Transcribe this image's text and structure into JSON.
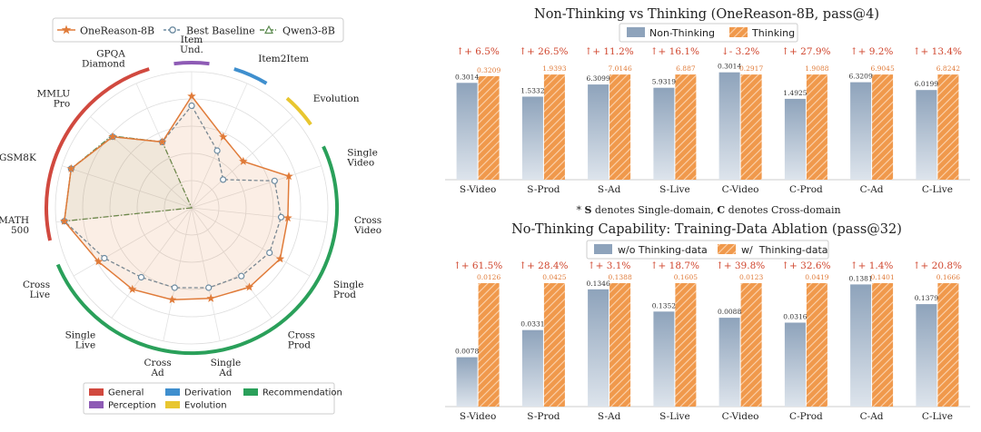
{
  "colors": {
    "onereason": "#e07b39",
    "baseline": "#6b8aa0",
    "qwen": "#5c8a4f",
    "general": "#d1493f",
    "perception": "#8e5bb5",
    "derivation": "#3f8fce",
    "evolution": "#e8c630",
    "recommendation": "#2aa05a",
    "bar_blue": "#8ea3bb",
    "bar_orange": "#f0994c",
    "gain_text": "#d0462e",
    "value_orange": "#e07b39"
  },
  "chart_data": [
    {
      "type": "radar",
      "legend": [
        "OneReason-8B",
        "Best Baseline",
        "Qwen3-8B"
      ],
      "axes": [
        {
          "label": [
            "Item",
            "Und."
          ],
          "group": "perception"
        },
        {
          "label": [
            "Item2Item"
          ],
          "group": "derivation"
        },
        {
          "label": [
            "Evolution"
          ],
          "group": "evolution"
        },
        {
          "label": [
            "Single",
            "Video"
          ],
          "group": "recommendation"
        },
        {
          "label": [
            "Cross",
            "Video"
          ],
          "group": "recommendation"
        },
        {
          "label": [
            "Single",
            "Prod"
          ],
          "group": "recommendation"
        },
        {
          "label": [
            "Cross",
            "Prod"
          ],
          "group": "recommendation"
        },
        {
          "label": [
            "Single",
            "Ad"
          ],
          "group": "recommendation"
        },
        {
          "label": [
            "Cross",
            "Ad"
          ],
          "group": "recommendation"
        },
        {
          "label": [
            "Single",
            "Live"
          ],
          "group": "recommendation"
        },
        {
          "label": [
            "Cross",
            "Live"
          ],
          "group": "recommendation"
        },
        {
          "label": [
            "MATH",
            "500"
          ],
          "group": "general"
        },
        {
          "label": [
            "GSM8K"
          ],
          "group": "general"
        },
        {
          "label": [
            "MMLU",
            "Pro"
          ],
          "group": "general"
        },
        {
          "label": [
            "GPQA",
            "Diamond"
          ],
          "group": "general"
        }
      ],
      "series": [
        {
          "name": "OneReason-8B",
          "values": [
            0.82,
            0.57,
            0.51,
            0.75,
            0.71,
            0.75,
            0.72,
            0.68,
            0.69,
            0.74,
            0.79,
            0.94,
            0.93,
            0.78,
            0.53
          ]
        },
        {
          "name": "Best Baseline",
          "values": [
            0.75,
            0.46,
            0.31,
            0.64,
            0.66,
            0.66,
            0.62,
            0.6,
            0.6,
            0.63,
            0.74,
            0.94,
            0.93,
            0.78,
            0.53
          ]
        },
        {
          "name": "Qwen3-8B",
          "values": [
            0,
            0,
            0,
            0,
            0,
            0,
            0,
            0,
            0,
            0,
            0,
            0.94,
            0.93,
            0.79,
            0.53
          ]
        }
      ],
      "groups_legend": [
        {
          "key": "general",
          "label": "General"
        },
        {
          "key": "derivation",
          "label": "Derivation"
        },
        {
          "key": "recommendation",
          "label": "Recommendation"
        },
        {
          "key": "perception",
          "label": "Perception"
        },
        {
          "key": "evolution",
          "label": "Evolution"
        }
      ]
    },
    {
      "type": "bar",
      "title": "Non-Thinking vs Thinking (OneReason-8B, pass@4)",
      "categories": [
        "S-Video",
        "S-Prod",
        "S-Ad",
        "S-Live",
        "C-Video",
        "C-Prod",
        "C-Ad",
        "C-Live"
      ],
      "series": [
        {
          "name": "Non-Thinking",
          "values": [
            0.3014,
            1.5332,
            6.3099,
            5.9319,
            0.3014,
            1.4925,
            6.3209,
            6.0199
          ],
          "labels": [
            "0.3014",
            "1.5332",
            "6.3099",
            "5.9319",
            "0.3014",
            "1.4925",
            "6.3209",
            "6.0199"
          ],
          "relative": [
            0.875,
            0.75,
            0.86,
            0.83,
            0.97,
            0.73,
            0.88,
            0.81
          ]
        },
        {
          "name": "Thinking",
          "values": [
            0.3209,
            1.9393,
            7.0146,
            6.887,
            0.2917,
            1.9088,
            6.9045,
            6.8242
          ],
          "labels": [
            "0.3209",
            "1.9393",
            "7.0146",
            "6.887",
            "0.2917",
            "1.9088",
            "6.9045",
            "6.8242"
          ],
          "relative": [
            0.935,
            0.95,
            0.95,
            0.95,
            0.95,
            0.95,
            0.95,
            0.95
          ]
        }
      ],
      "gains": [
        "↑+ 6.5%",
        "↑+ 26.5%",
        "↑+ 11.2%",
        "↑+ 16.1%",
        "↓- 3.2%",
        "↑+ 27.9%",
        "↑+ 9.2%",
        "↑+ 13.4%"
      ],
      "legend_placement": "top-center"
    },
    {
      "type": "bar",
      "title": "No-Thinking Capability: Training-Data Ablation (pass@32)",
      "categories": [
        "S-Video",
        "S-Prod",
        "S-Ad",
        "S-Live",
        "C-Video",
        "C-Prod",
        "C-Ad",
        "C-Live"
      ],
      "series": [
        {
          "name": "w/o Thinking-data",
          "values": [
            0.0078,
            0.0331,
            0.1346,
            0.1352,
            0.0088,
            0.0316,
            0.1381,
            0.1379
          ],
          "labels": [
            "0.0078",
            "0.0331",
            "0.1346",
            "0.1352",
            "0.0088",
            "0.0316",
            "0.1381",
            "0.1379"
          ],
          "relative": [
            0.4,
            0.62,
            0.95,
            0.77,
            0.72,
            0.68,
            0.99,
            0.83
          ]
        },
        {
          "name": "w/  Thinking-data",
          "values": [
            0.0126,
            0.0425,
            0.1388,
            0.1605,
            0.0123,
            0.0419,
            0.1401,
            0.1666
          ],
          "labels": [
            "0.0126",
            "0.0425",
            "0.1388",
            "0.1605",
            "0.0123",
            "0.0419",
            "0.1401",
            "0.1666"
          ],
          "relative": [
            1,
            1,
            1,
            1,
            1,
            1,
            1,
            1
          ]
        }
      ],
      "gains": [
        "↑+ 61.5%",
        "↑+ 28.4%",
        "↑+ 3.1%",
        "↑+ 18.7%",
        "↑+ 39.8%",
        "↑+ 32.6%",
        "↑+ 1.4%",
        "↑+ 20.8%"
      ],
      "legend_placement": "top-center"
    }
  ],
  "footnote": {
    "prefix": "* ",
    "s_letter": "S",
    "s_text": " denotes Single-domain,  ",
    "c_letter": "C",
    "c_text": " denotes Cross-domain"
  }
}
